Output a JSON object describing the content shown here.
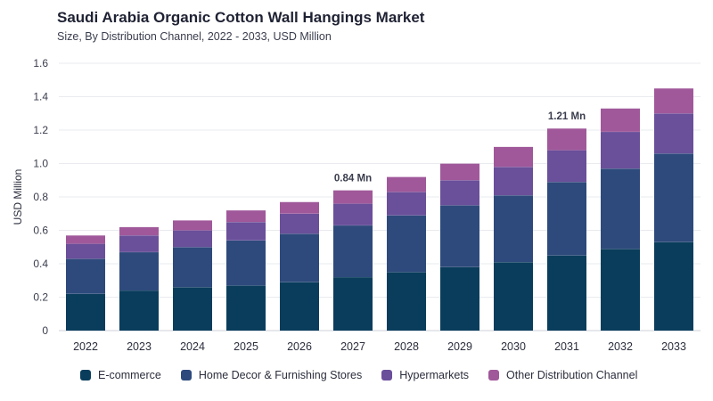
{
  "header": {
    "title": "Saudi Arabia Organic Cotton Wall Hangings Market",
    "subtitle": "Size, By Distribution Channel, 2022 - 2033, USD Million"
  },
  "chart_data": {
    "type": "bar",
    "stacked": true,
    "title": "Saudi Arabia Organic Cotton Wall Hangings Market",
    "subtitle": "Size, By Distribution Channel, 2022 - 2033, USD Million",
    "xlabel": "",
    "ylabel": "USD Million",
    "ylim": [
      0,
      1.6
    ],
    "yticks": [
      "0",
      "0.2",
      "0.4",
      "0.6",
      "0.8",
      "1.0",
      "1.2",
      "1.4",
      "1.6"
    ],
    "grid": true,
    "legend_position": "bottom",
    "categories": [
      "2022",
      "2023",
      "2024",
      "2025",
      "2026",
      "2027",
      "2028",
      "2029",
      "2030",
      "2031",
      "2032",
      "2033"
    ],
    "series": [
      {
        "name": "E-commerce",
        "color": "#0a3d5c",
        "values": [
          0.22,
          0.24,
          0.26,
          0.27,
          0.29,
          0.32,
          0.35,
          0.38,
          0.41,
          0.45,
          0.49,
          0.53
        ]
      },
      {
        "name": "Home Decor & Furnishing Stores",
        "color": "#2e4a7c",
        "values": [
          0.21,
          0.23,
          0.24,
          0.27,
          0.29,
          0.31,
          0.34,
          0.37,
          0.4,
          0.44,
          0.48,
          0.53
        ]
      },
      {
        "name": "Hypermarkets",
        "color": "#6a4f9a",
        "values": [
          0.09,
          0.1,
          0.1,
          0.11,
          0.12,
          0.13,
          0.14,
          0.15,
          0.17,
          0.19,
          0.22,
          0.24
        ]
      },
      {
        "name": "Other Distribution Channel",
        "color": "#a0589a",
        "values": [
          0.05,
          0.05,
          0.06,
          0.07,
          0.07,
          0.08,
          0.09,
          0.1,
          0.12,
          0.13,
          0.14,
          0.15
        ]
      }
    ],
    "annotations": [
      {
        "category": "2027",
        "text": "0.84 Mn",
        "value": 0.84
      },
      {
        "category": "2031",
        "text": "1.21 Mn",
        "value": 1.21
      }
    ]
  }
}
